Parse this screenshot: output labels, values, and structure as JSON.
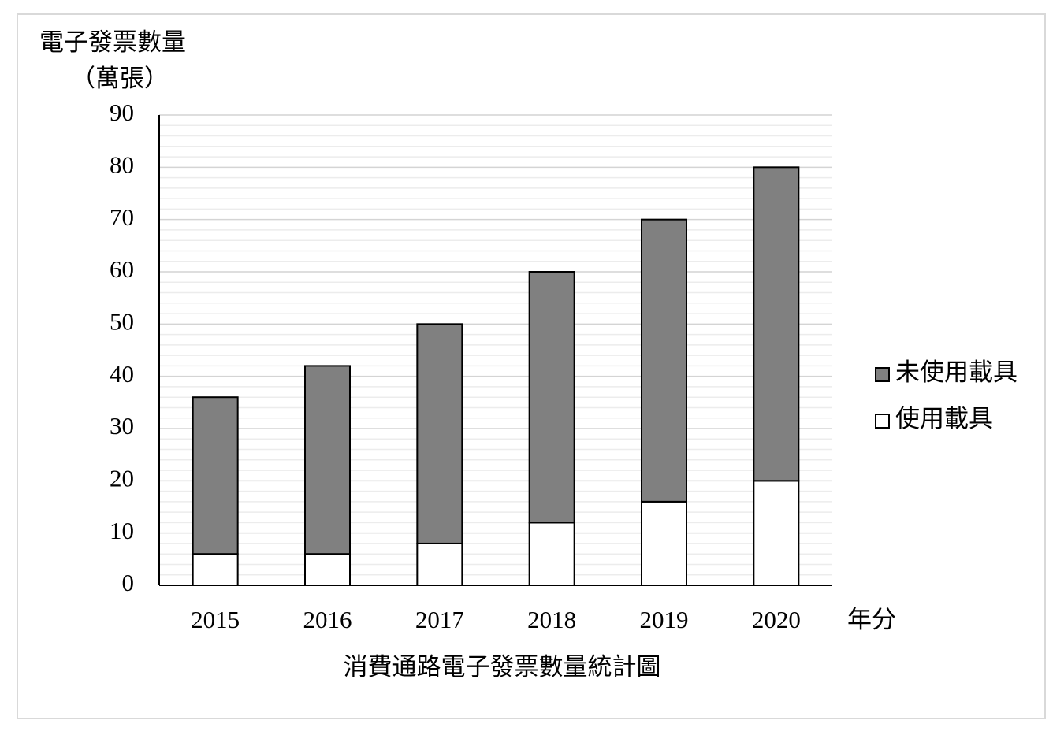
{
  "chart_data": {
    "type": "stacked_bar",
    "title": "消費通路電子發票數量統計圖",
    "y_label": "電子發票數量",
    "y_unit": "（萬張）",
    "x_label": "年分",
    "categories": [
      "2015",
      "2016",
      "2017",
      "2018",
      "2019",
      "2020"
    ],
    "series": [
      {
        "name": "使用載具",
        "color": "#ffffff",
        "values": [
          6,
          6,
          8,
          12,
          16,
          20
        ]
      },
      {
        "name": "未使用載具",
        "color": "#808080",
        "values": [
          30,
          36,
          42,
          48,
          54,
          60
        ]
      }
    ],
    "ylim": [
      0,
      90
    ],
    "yticks": [
      0,
      10,
      20,
      30,
      40,
      50,
      60,
      70,
      80,
      90
    ],
    "minor_yticks": [
      2,
      4,
      6,
      8,
      12,
      14,
      16,
      18,
      22,
      24,
      26,
      28,
      32,
      34,
      36,
      38,
      42,
      44,
      46,
      48,
      52,
      54,
      56,
      58,
      62,
      64,
      66,
      68,
      72,
      74,
      76,
      78,
      82,
      84,
      86,
      88
    ],
    "grid": true,
    "legend": "right"
  }
}
